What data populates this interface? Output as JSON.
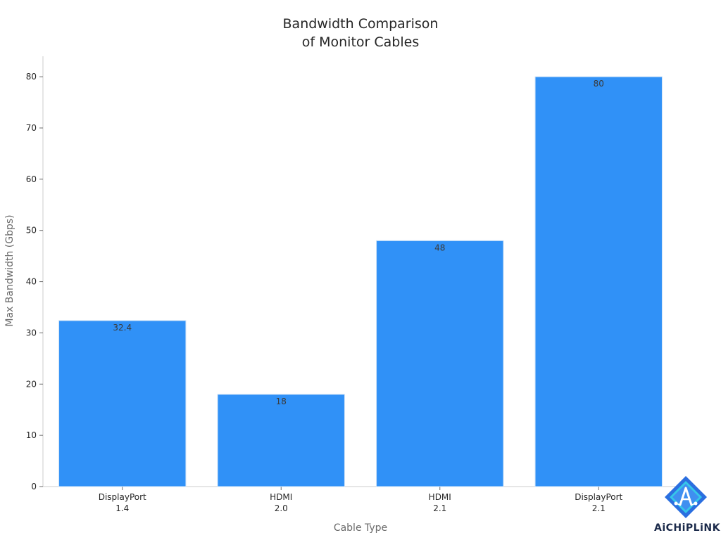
{
  "chart_data": {
    "type": "bar",
    "title_lines": [
      "Bandwidth Comparison",
      "of Monitor Cables"
    ],
    "xlabel": "Cable Type",
    "ylabel": "Max Bandwidth (Gbps)",
    "categories": [
      [
        "DisplayPort",
        "1.4"
      ],
      [
        "HDMI",
        "2.0"
      ],
      [
        "HDMI",
        "2.1"
      ],
      [
        "DisplayPort",
        "2.1"
      ]
    ],
    "values": [
      32.4,
      18,
      48,
      80
    ],
    "data_labels": [
      "32.4",
      "18",
      "48",
      "80"
    ],
    "ylim": [
      0,
      84
    ],
    "yticks": [
      0,
      10,
      20,
      30,
      40,
      50,
      60,
      70,
      80
    ],
    "grid": false,
    "bar_color": "#3091f7"
  },
  "logo": {
    "text": "AiCHiPLiNK",
    "icon": "aichiplink-logo-icon",
    "colors": {
      "outer": "#2b6fe0",
      "inner": "#35c7e8",
      "text": "#1b2a4a"
    }
  }
}
